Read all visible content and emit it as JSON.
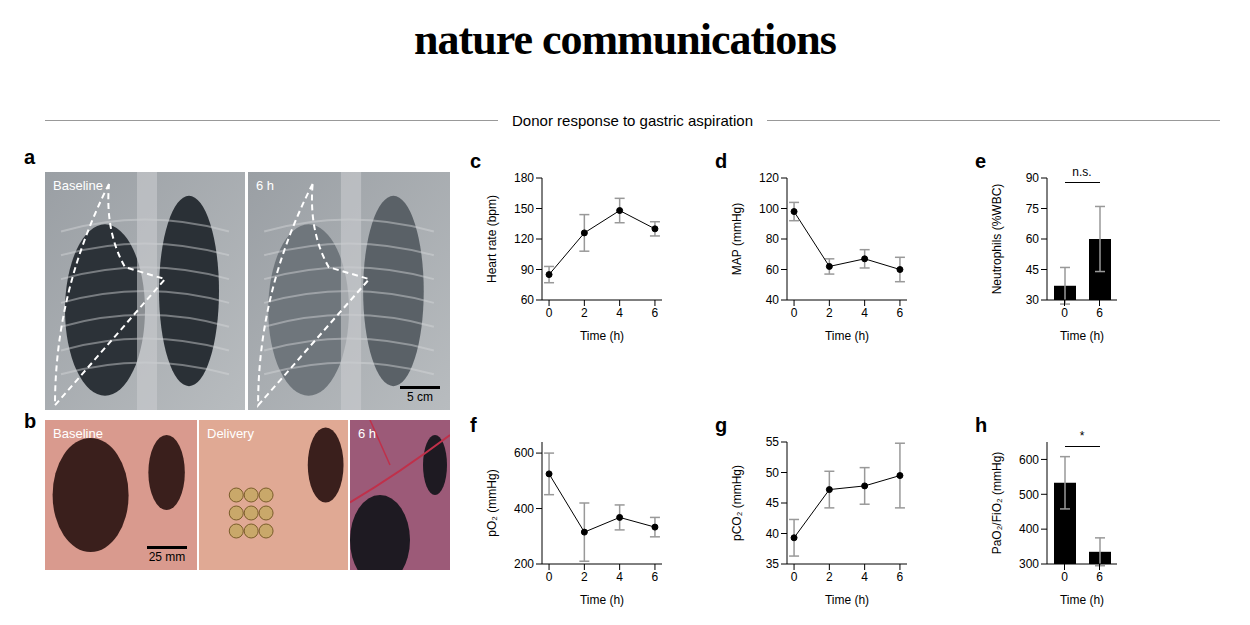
{
  "header": {
    "journal": "nature communications",
    "section": "Donor response to gastric aspiration"
  },
  "images": [
    {
      "label": "a",
      "panels": [
        {
          "label": "Baseline"
        },
        {
          "label": "6 h",
          "scale_bar": "5 cm"
        }
      ]
    },
    {
      "label": "b",
      "panels": [
        {
          "label": "Baseline",
          "scale_bar": "25 mm"
        },
        {
          "label": "Delivery"
        },
        {
          "label": "6 h"
        }
      ]
    }
  ],
  "chart_data": [
    {
      "label": "c",
      "type": "line",
      "ylabel": "Heart rate (bpm)",
      "xlabel": "Time (h)",
      "x": [
        0,
        2,
        4,
        6
      ],
      "values": [
        85,
        126,
        148,
        130
      ],
      "errors": [
        8,
        18,
        12,
        7
      ],
      "xlim": [
        -0.4,
        6.4
      ],
      "xticks": [
        0,
        2,
        4,
        6
      ],
      "ylim": [
        60,
        180
      ],
      "yticks": [
        60,
        90,
        120,
        150,
        180
      ],
      "color": "#000000",
      "marker": "circle"
    },
    {
      "label": "d",
      "type": "line",
      "ylabel": "MAP (mmHg)",
      "xlabel": "Time (h)",
      "x": [
        0,
        2,
        4,
        6
      ],
      "values": [
        98,
        62,
        67,
        60
      ],
      "errors": [
        6,
        5,
        6,
        8
      ],
      "xlim": [
        -0.4,
        6.4
      ],
      "xticks": [
        0,
        2,
        4,
        6
      ],
      "ylim": [
        40,
        120
      ],
      "yticks": [
        40,
        60,
        80,
        100,
        120
      ],
      "color": "#000000",
      "marker": "circle"
    },
    {
      "label": "e",
      "type": "bar",
      "ylabel": "Neutrophils (%WBC)",
      "xlabel": "Time (h)",
      "categories": [
        "0",
        "6"
      ],
      "values": [
        37,
        60
      ],
      "errors": [
        9,
        16
      ],
      "ylim": [
        30,
        90
      ],
      "yticks": [
        30,
        45,
        60,
        75,
        90
      ],
      "color": "#000000",
      "annotation": "n.s."
    },
    {
      "label": "f",
      "type": "line",
      "ylabel": "pO₂ (mmHg)",
      "xlabel": "Time (h)",
      "x": [
        0,
        2,
        4,
        6
      ],
      "values": [
        525,
        315,
        368,
        333
      ],
      "errors": [
        75,
        105,
        45,
        35
      ],
      "xlim": [
        -0.4,
        6.4
      ],
      "xticks": [
        0,
        2,
        4,
        6
      ],
      "ylim": [
        200,
        640
      ],
      "yticks": [
        200,
        400,
        600
      ],
      "color": "#000000",
      "marker": "circle"
    },
    {
      "label": "g",
      "type": "line",
      "ylabel": "pCO₂ (mmHg)",
      "xlabel": "Time (h)",
      "x": [
        0,
        2,
        4,
        6
      ],
      "values": [
        39.3,
        47.2,
        47.8,
        49.5
      ],
      "errors": [
        3,
        3,
        3,
        5.3
      ],
      "xlim": [
        -0.4,
        6.4
      ],
      "xticks": [
        0,
        2,
        4,
        6
      ],
      "ylim": [
        35,
        55
      ],
      "yticks": [
        35,
        40,
        45,
        50,
        55
      ],
      "color": "#000000",
      "marker": "circle"
    },
    {
      "label": "h",
      "type": "bar",
      "ylabel": "PaO₂/FiO₂ (mmHg)",
      "xlabel": "Time (h)",
      "categories": [
        "0",
        "6"
      ],
      "values": [
        533,
        335
      ],
      "errors": [
        75,
        40
      ],
      "ylim": [
        300,
        650
      ],
      "yticks": [
        300,
        400,
        500,
        600
      ],
      "color": "#000000",
      "annotation": "*"
    }
  ]
}
